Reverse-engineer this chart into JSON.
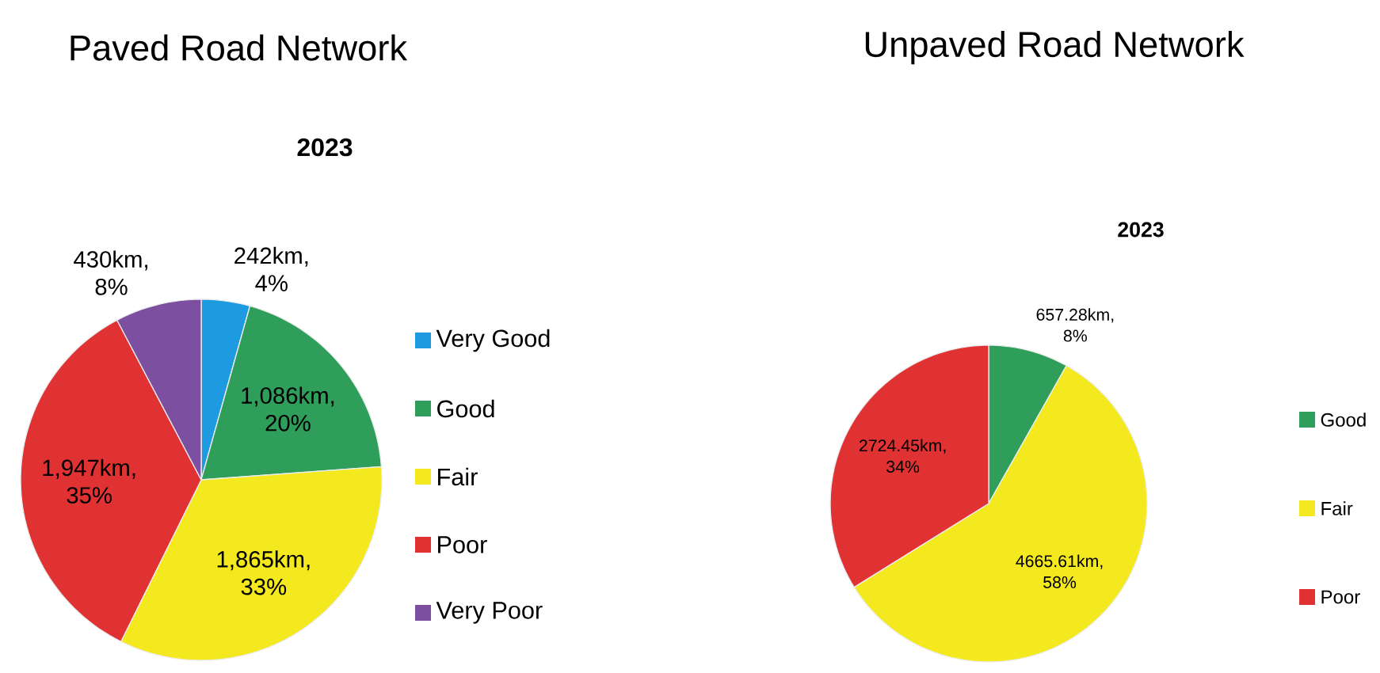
{
  "chart_data": [
    {
      "type": "pie",
      "title": "Paved Road Network",
      "subtitle": "2023",
      "categories": [
        "Very Good",
        "Good",
        "Fair",
        "Poor",
        "Very Poor"
      ],
      "values": [
        242,
        1086,
        1865,
        1947,
        430
      ],
      "colors": [
        "#1e9be0",
        "#2e9e5a",
        "#f4e81e",
        "#e03232",
        "#7d4fa0"
      ],
      "value_labels": [
        "242km, 4%",
        "1,086km, 20%",
        "1,865km, 33%",
        "1,947km, 35%",
        "430km, 8%"
      ],
      "legend": "right"
    },
    {
      "type": "pie",
      "title": "Unpaved Road Network",
      "subtitle": "2023",
      "categories": [
        "Good",
        "Fair",
        "Poor"
      ],
      "values": [
        657.28,
        4665.61,
        2724.45
      ],
      "colors": [
        "#2e9e5a",
        "#f4e81e",
        "#e03232"
      ],
      "value_labels": [
        "657.28km, 8%",
        "4665.61km, 58%",
        "2724.45km, 34%"
      ],
      "legend": "right"
    }
  ]
}
